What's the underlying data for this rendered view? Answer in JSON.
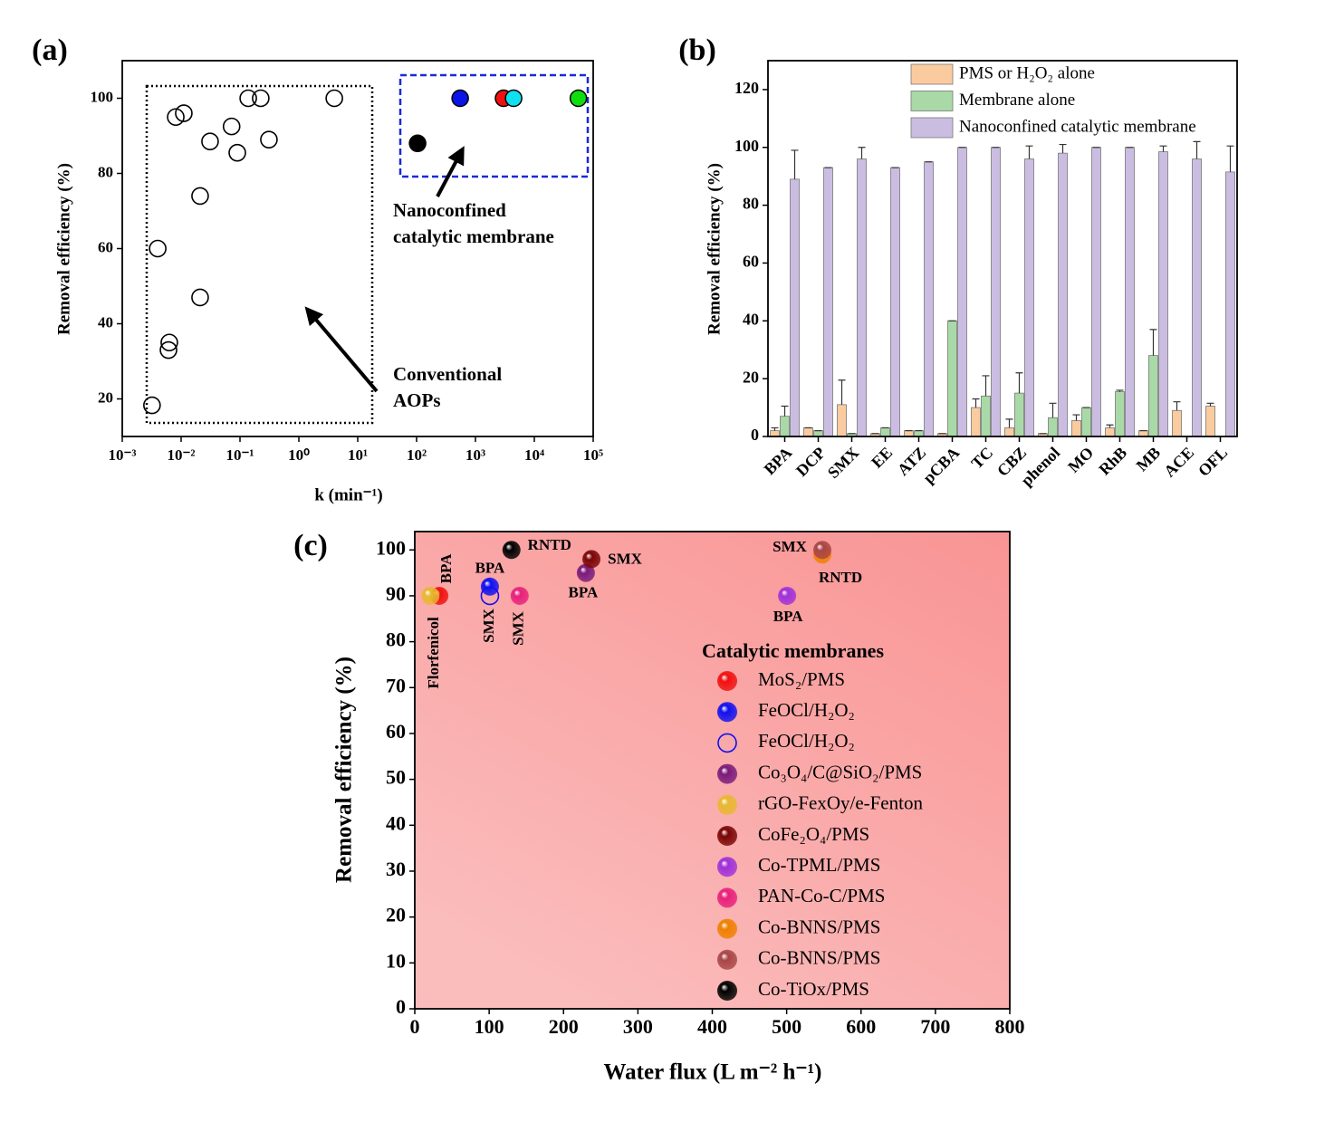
{
  "chart_data": [
    {
      "type": "scatter",
      "panel_label": "(a)",
      "xlabel": "k (min⁻¹)",
      "ylabel": "Removal efficiency (%)",
      "xscale": "log",
      "xlim": [
        0.001,
        100000
      ],
      "xticks": [
        {
          "value": 0.001,
          "label": "10⁻³"
        },
        {
          "value": 0.01,
          "label": "10⁻²"
        },
        {
          "value": 0.1,
          "label": "10⁻¹"
        },
        {
          "value": 1,
          "label": "10⁰"
        },
        {
          "value": 10,
          "label": "10¹"
        },
        {
          "value": 100,
          "label": "10²"
        },
        {
          "value": 1000,
          "label": "10³"
        },
        {
          "value": 10000,
          "label": "10⁴"
        },
        {
          "value": 100000,
          "label": "10⁵"
        }
      ],
      "ylim": [
        10,
        110
      ],
      "yticks": [
        20,
        40,
        60,
        80,
        100
      ],
      "series": [
        {
          "marker": "open",
          "color": "#000000",
          "x": [
            0.0032,
            0.004,
            0.0063,
            0.0061,
            0.0081,
            0.0111,
            0.021,
            0.021,
            0.031,
            0.072,
            0.09,
            0.138,
            0.225,
            0.31,
            4.0
          ],
          "values": [
            18.3,
            60,
            35,
            33,
            95,
            96,
            74,
            47,
            88.5,
            92.5,
            85.5,
            100,
            100,
            89,
            100
          ]
        },
        {
          "marker": "filled",
          "colors": [
            "#000000",
            "#0a14e6",
            "#f01010",
            "#10e0f0",
            "#10dd10"
          ],
          "x": [
            104,
            550,
            3000,
            4450,
            56000
          ],
          "values": [
            88,
            100,
            100,
            100,
            100
          ]
        }
      ],
      "annotations": [
        [
          "Conventional",
          "AOPs"
        ],
        [
          "Nanoconfined",
          "catalytic membrane"
        ]
      ]
    },
    {
      "type": "bar",
      "panel_label": "(b)",
      "ylabel": "Removal efficiency (%)",
      "categories": [
        "BPA",
        "DCP",
        "SMX",
        "EE",
        "ATZ",
        "pCBA",
        "TC",
        "CBZ",
        "phenol",
        "MO",
        "RhB",
        "MB",
        "ACE",
        "OFL"
      ],
      "ylim": [
        0,
        130
      ],
      "yticks": [
        0,
        20,
        40,
        60,
        80,
        100,
        120
      ],
      "series": [
        {
          "name": "PMS or H₂O₂ alone",
          "color": "#fbcba0",
          "values": [
            2,
            3,
            11,
            1,
            2,
            1,
            10,
            3,
            1,
            5.5,
            3,
            2,
            9,
            10.5
          ],
          "errors": [
            1,
            0,
            8.5,
            0,
            0,
            0,
            3,
            3,
            0,
            2,
            1,
            0,
            3,
            1
          ]
        },
        {
          "name": "Membrane alone",
          "color": "#a9d9a6",
          "values": [
            7,
            2,
            1,
            3,
            2,
            40,
            14,
            15,
            6.5,
            10,
            15.5,
            28,
            0,
            0
          ],
          "errors": [
            3.5,
            0,
            0,
            0,
            0,
            0,
            7,
            7,
            5,
            0,
            0.5,
            9,
            0,
            0
          ]
        },
        {
          "name": "Nanoconfined catalytic membrane",
          "color": "#cbbde2",
          "values": [
            89,
            93,
            96,
            93,
            95,
            100,
            100,
            96,
            98,
            100,
            100,
            98.5,
            96,
            91.5
          ],
          "errors": [
            10,
            0,
            4,
            0,
            0,
            0,
            0,
            4.5,
            3,
            0,
            0,
            2,
            6,
            9
          ]
        }
      ]
    },
    {
      "type": "scatter",
      "panel_label": "(c)",
      "xlabel": "Water flux (L m⁻² h⁻¹)",
      "ylabel": "Removal efficiency (%)",
      "xlim": [
        0,
        800
      ],
      "xticks": [
        0,
        100,
        200,
        300,
        400,
        500,
        600,
        700,
        800
      ],
      "ylim": [
        0,
        104
      ],
      "yticks": [
        0,
        10,
        20,
        30,
        40,
        50,
        60,
        70,
        80,
        90,
        100
      ],
      "legend_title": "Catalytic membranes",
      "series": [
        {
          "name": "MoS₂/PMS",
          "color": "#f01010",
          "marker": "sphere",
          "x": [
            33
          ],
          "values": [
            90
          ],
          "point_labels": [
            "BPA"
          ],
          "label_color": "#f01010"
        },
        {
          "name": "FeOCl/H₂O₂",
          "color": "#1010f0",
          "marker": "sphere",
          "x": [
            101
          ],
          "values": [
            92
          ],
          "point_labels": [
            "BPA"
          ],
          "label_color": "#1010f0"
        },
        {
          "name": "FeOCl/H₂O₂",
          "color": "#1010f0",
          "marker": "open",
          "x": [
            101
          ],
          "values": [
            90
          ],
          "point_labels": [
            "SMX"
          ],
          "label_color": "#1010f0"
        },
        {
          "name": "Co₃O₄/C@SiO₂/PMS",
          "color": "#7a1a7a",
          "marker": "sphere",
          "x": [
            230
          ],
          "values": [
            95
          ],
          "point_labels": [
            "BPA"
          ],
          "label_color": "#7a1a7a"
        },
        {
          "name": "rGO-FexOy/e-Fenton",
          "color": "#e8b830",
          "marker": "sphere",
          "x": [
            21
          ],
          "values": [
            90
          ],
          "point_labels": [
            "Florfenicol"
          ],
          "label_color": "#f09a40"
        },
        {
          "name": "CoFe₂O₄/PMS",
          "color": "#7a0505",
          "marker": "sphere",
          "x": [
            237.5
          ],
          "values": [
            98
          ],
          "point_labels": [
            "SMX"
          ],
          "label_color": "#8a0a0a"
        },
        {
          "name": "Co-TPML/PMS",
          "color": "#a030d8",
          "marker": "sphere",
          "x": [
            500.6
          ],
          "values": [
            90
          ],
          "point_labels": [
            "BPA"
          ],
          "label_color": "#a030d8"
        },
        {
          "name": "PAN-Co-C/PMS",
          "color": "#e8207a",
          "marker": "sphere",
          "x": [
            141
          ],
          "values": [
            90
          ],
          "point_labels": [
            "SMX"
          ],
          "label_color": "#e8207a"
        },
        {
          "name": "Co-BNNS/PMS",
          "color": "#f08000",
          "marker": "sphere",
          "x": [
            548
          ],
          "values": [
            99
          ],
          "point_labels": [
            "RNTD"
          ],
          "label_color": "#f08000"
        },
        {
          "name": "Co-BNNS/PMS",
          "color": "#a84545",
          "marker": "sphere",
          "x": [
            548
          ],
          "values": [
            100
          ],
          "point_labels": [
            "SMX"
          ],
          "label_color": "#6a1010"
        },
        {
          "name": "Co-TiOx/PMS",
          "color": "#000000",
          "marker": "sphere",
          "x": [
            130
          ],
          "values": [
            100
          ],
          "point_labels": [
            "RNTD"
          ],
          "label_color": "#000000"
        }
      ]
    }
  ]
}
